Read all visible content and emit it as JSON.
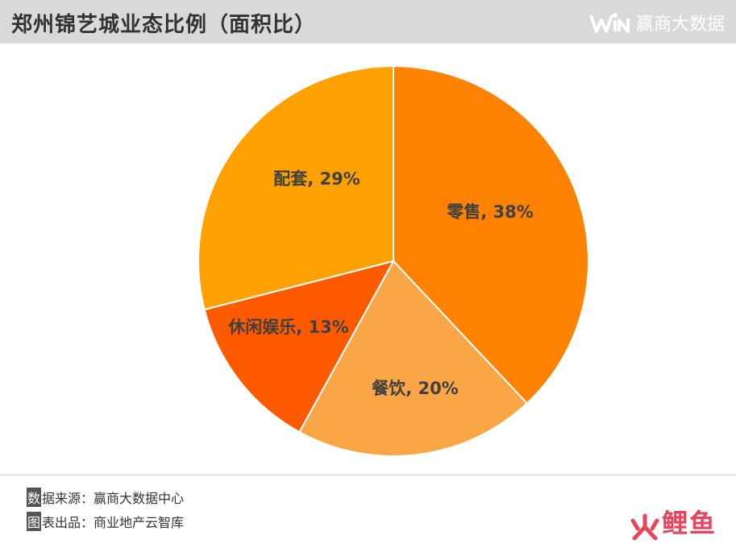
{
  "header": {
    "title": "郑州锦艺城业态比例（面积比）",
    "brand_name": "赢商大数据"
  },
  "chart_data": {
    "type": "pie",
    "title": "郑州锦艺城业态比例（面积比）",
    "slices": [
      {
        "label": "零售",
        "value": 38,
        "display": "零售, 38%",
        "color": "#ff8200"
      },
      {
        "label": "餐饮",
        "value": 20,
        "display": "餐饮, 20%",
        "color": "#faa646"
      },
      {
        "label": "休闲娱乐",
        "value": 13,
        "display": "休闲娱乐, 13%",
        "color": "#ff5a00"
      },
      {
        "label": "配套",
        "value": 29,
        "display": "配套, 29%",
        "color": "#ffa100"
      }
    ],
    "start_angle": "top, clockwise",
    "legend": "none (labels on slices)"
  },
  "footer": {
    "source_mark": "数",
    "source_rest": "据来源：赢商大数据中心",
    "credit_mark": "图",
    "credit_rest": "表出品：商业地产云智库"
  },
  "watermark": {
    "text": "鲤鱼",
    "icon": "flame-icon",
    "color": "#e8455d"
  }
}
